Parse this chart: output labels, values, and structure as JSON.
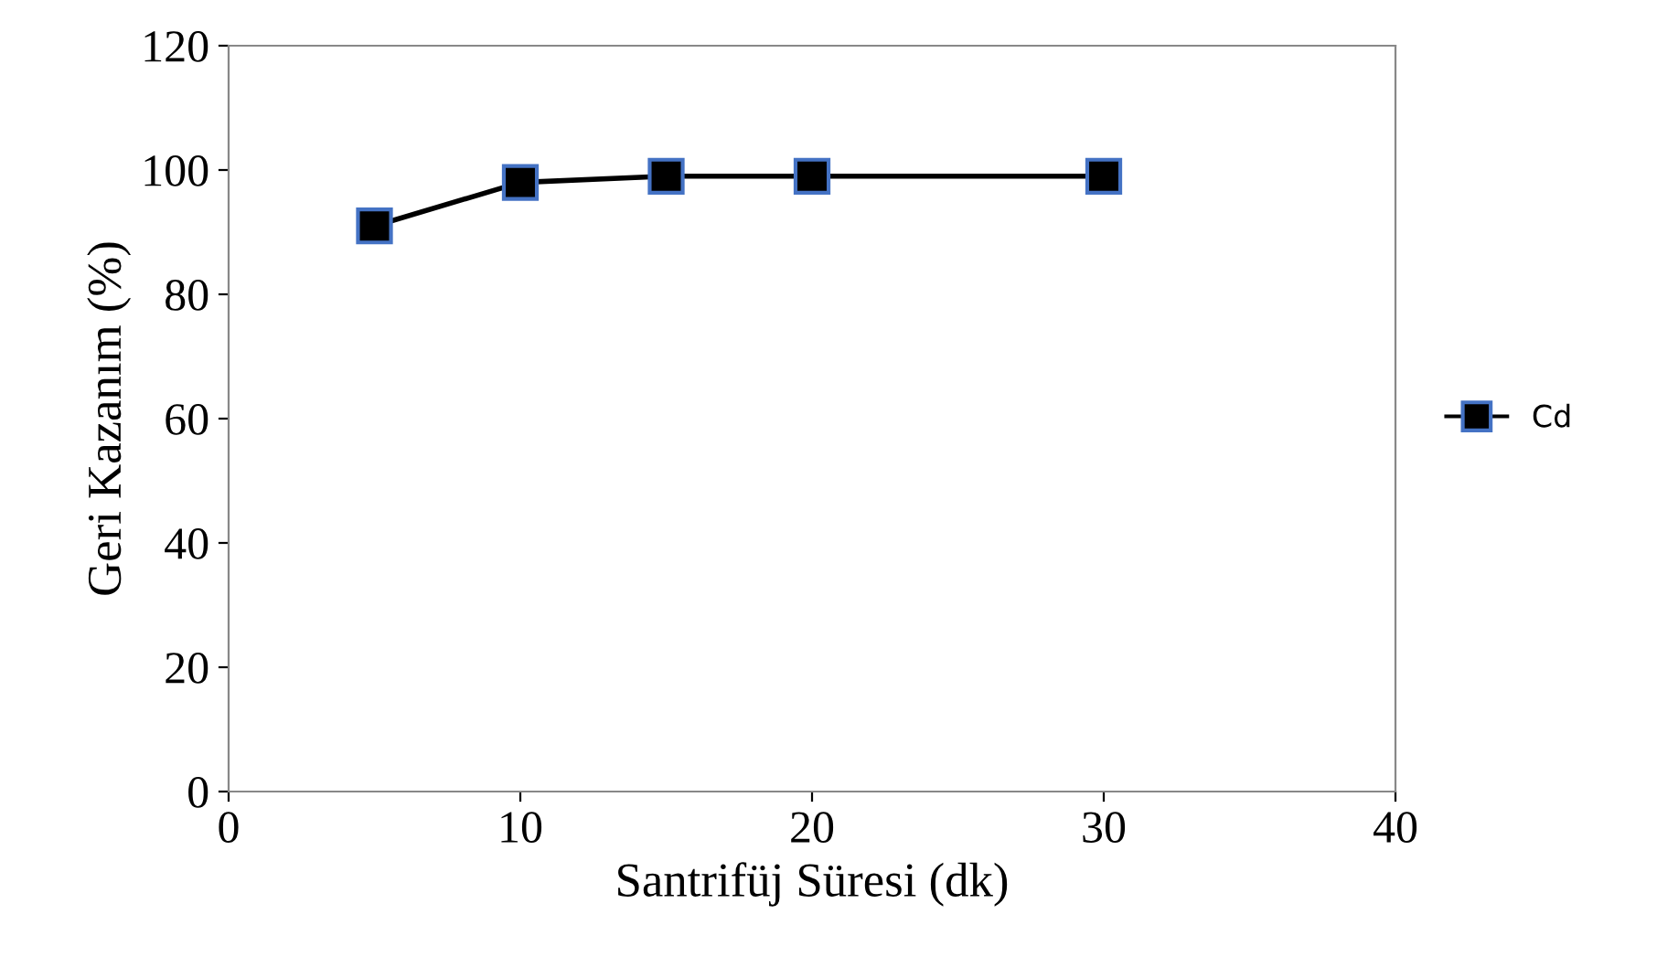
{
  "chart_data": {
    "type": "line",
    "xlabel": "Santrifüj Süresi (dk)",
    "ylabel": "Geri Kazanım (%)",
    "x": [
      5,
      10,
      15,
      20,
      30
    ],
    "series": [
      {
        "name": "Cd",
        "color": "#000000",
        "values": [
          91,
          98,
          99,
          99,
          99
        ]
      }
    ],
    "xlim": [
      0,
      40
    ],
    "xticks": [
      0,
      10,
      20,
      30,
      40
    ],
    "ylim": [
      0,
      120
    ],
    "yticks": [
      0,
      20,
      40,
      60,
      80,
      100,
      120
    ],
    "grid": false,
    "legend": "right",
    "marker": "square",
    "line_style": "solid"
  }
}
